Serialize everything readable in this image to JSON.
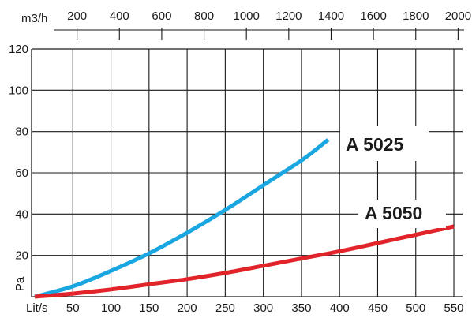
{
  "chart_data": {
    "type": "line",
    "title": "",
    "xlabel": "Lit/s",
    "ylabel": "Pa",
    "secondary_xlabel": "m3/h",
    "xlim": [
      0,
      550
    ],
    "ylim": [
      0,
      120
    ],
    "x_ticks": [
      50,
      100,
      150,
      200,
      250,
      300,
      350,
      400,
      450,
      500,
      550
    ],
    "x_tick_labels": [
      "50",
      "100",
      "150",
      "200",
      "250",
      "300",
      "350",
      "400",
      "450",
      "500",
      "550"
    ],
    "y_ticks": [
      20,
      40,
      60,
      80,
      100,
      120
    ],
    "y_tick_labels": [
      "20",
      "40",
      "60",
      "80",
      "100",
      "120"
    ],
    "secondary_x_ticks": [
      200,
      400,
      600,
      800,
      1000,
      1200,
      1400,
      1600,
      1800,
      2000
    ],
    "secondary_x_tick_labels": [
      "200",
      "400",
      "600",
      "800",
      "1000",
      "1200",
      "1400",
      "1600",
      "1800",
      "2000"
    ],
    "grid": true,
    "series": [
      {
        "name": "A 5025",
        "color": "#1aa6e0",
        "x": [
          0,
          50,
          100,
          150,
          200,
          250,
          300,
          350,
          385
        ],
        "y": [
          0,
          5,
          12.5,
          21,
          31,
          42,
          54,
          66,
          76
        ]
      },
      {
        "name": "A 5050",
        "color": "#e0242a",
        "x": [
          0,
          50,
          100,
          150,
          200,
          250,
          300,
          350,
          400,
          450,
          500,
          550
        ],
        "y": [
          0,
          1.5,
          3.5,
          6,
          8.5,
          11.5,
          15,
          18.5,
          22,
          26,
          30,
          34
        ]
      }
    ]
  }
}
